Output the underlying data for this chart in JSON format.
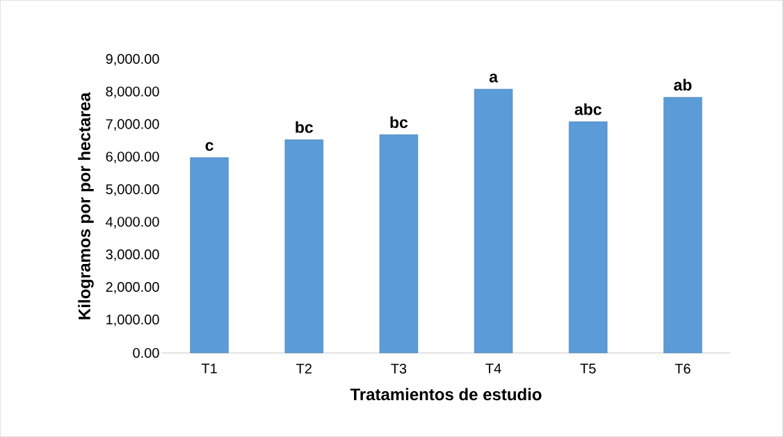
{
  "chart_data": {
    "type": "bar",
    "xlabel": "Tratamientos de estudio",
    "ylabel": "Kilogramos por  por hectarea",
    "categories": [
      "T1",
      "T2",
      "T3",
      "T4",
      "T5",
      "T6"
    ],
    "values": [
      6000,
      6550,
      6700,
      8100,
      7100,
      7850
    ],
    "color": "#5a9bd8",
    "ylim": [
      0,
      9000
    ],
    "yticks": [
      {
        "value": 0,
        "label": "0.00"
      },
      {
        "value": 1000,
        "label": "1,000.00"
      },
      {
        "value": 2000,
        "label": "2,000.00"
      },
      {
        "value": 3000,
        "label": "3,000.00"
      },
      {
        "value": 4000,
        "label": "4,000.00"
      },
      {
        "value": 5000,
        "label": "5,000.00"
      },
      {
        "value": 6000,
        "label": "6,000.00"
      },
      {
        "value": 7000,
        "label": "7,000.00"
      },
      {
        "value": 8000,
        "label": "8,000.00"
      },
      {
        "value": 9000,
        "label": "9,000.00"
      }
    ],
    "annotations": [
      {
        "text": "c",
        "x": "T1",
        "y": 6000
      },
      {
        "text": "bc",
        "x": "T2",
        "y": 6550
      },
      {
        "text": "bc",
        "x": "T3",
        "y": 6700
      },
      {
        "text": "a",
        "x": "T4",
        "y": 8100
      },
      {
        "text": "abc",
        "x": "T5",
        "y": 7100
      },
      {
        "text": "ab",
        "x": "T6",
        "y": 7850
      }
    ],
    "grid": false
  }
}
